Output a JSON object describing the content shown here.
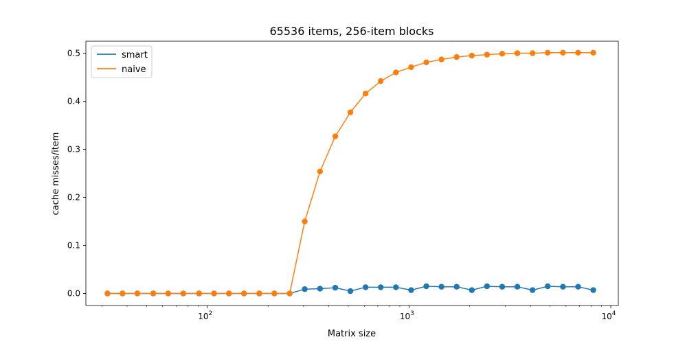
{
  "chart_data": {
    "type": "line",
    "title": "65536 items, 256-item blocks",
    "xlabel": "Matrix size",
    "ylabel": "cache misses/item",
    "xscale": "log",
    "xlim": [
      25,
      10900
    ],
    "ylim": [
      -0.025,
      0.525
    ],
    "grid": false,
    "legend_position": "top-left",
    "x_ticks": [
      {
        "value": 100,
        "base": "10",
        "exp": "2"
      },
      {
        "value": 1000,
        "base": "10",
        "exp": "3"
      },
      {
        "value": 10000,
        "base": "10",
        "exp": "4"
      }
    ],
    "y_ticks": [
      {
        "value": 0.0,
        "label": "0.0"
      },
      {
        "value": 0.1,
        "label": "0.1"
      },
      {
        "value": 0.2,
        "label": "0.2"
      },
      {
        "value": 0.3,
        "label": "0.3"
      },
      {
        "value": 0.4,
        "label": "0.4"
      },
      {
        "value": 0.5,
        "label": "0.5"
      }
    ],
    "x": [
      32,
      38,
      45,
      54,
      64,
      76,
      91,
      108,
      128,
      152,
      181,
      215,
      256,
      304,
      362,
      431,
      512,
      609,
      724,
      861,
      1024,
      1218,
      1448,
      1722,
      2048,
      2435,
      2896,
      3444,
      4096,
      4871,
      5793,
      6889,
      8192
    ],
    "series": [
      {
        "name": "smart",
        "color": "#1f77b4",
        "values": [
          0.0,
          0.0,
          0.0,
          0.0,
          0.0,
          0.0,
          0.0,
          0.0,
          0.0,
          0.0,
          0.0,
          0.0,
          0.0,
          0.009,
          0.01,
          0.012,
          0.005,
          0.013,
          0.013,
          0.013,
          0.007,
          0.015,
          0.014,
          0.014,
          0.007,
          0.015,
          0.014,
          0.014,
          0.007,
          0.015,
          0.014,
          0.014,
          0.007
        ]
      },
      {
        "name": "naive",
        "color": "#ff7f0e",
        "values": [
          0.0,
          0.0,
          0.0,
          0.0,
          0.0,
          0.0,
          0.0,
          0.0,
          0.0,
          0.0,
          0.0,
          0.0,
          0.0,
          0.15,
          0.254,
          0.327,
          0.377,
          0.416,
          0.442,
          0.46,
          0.471,
          0.481,
          0.487,
          0.492,
          0.495,
          0.497,
          0.499,
          0.5,
          0.5,
          0.501,
          0.501,
          0.501,
          0.501
        ]
      }
    ]
  }
}
